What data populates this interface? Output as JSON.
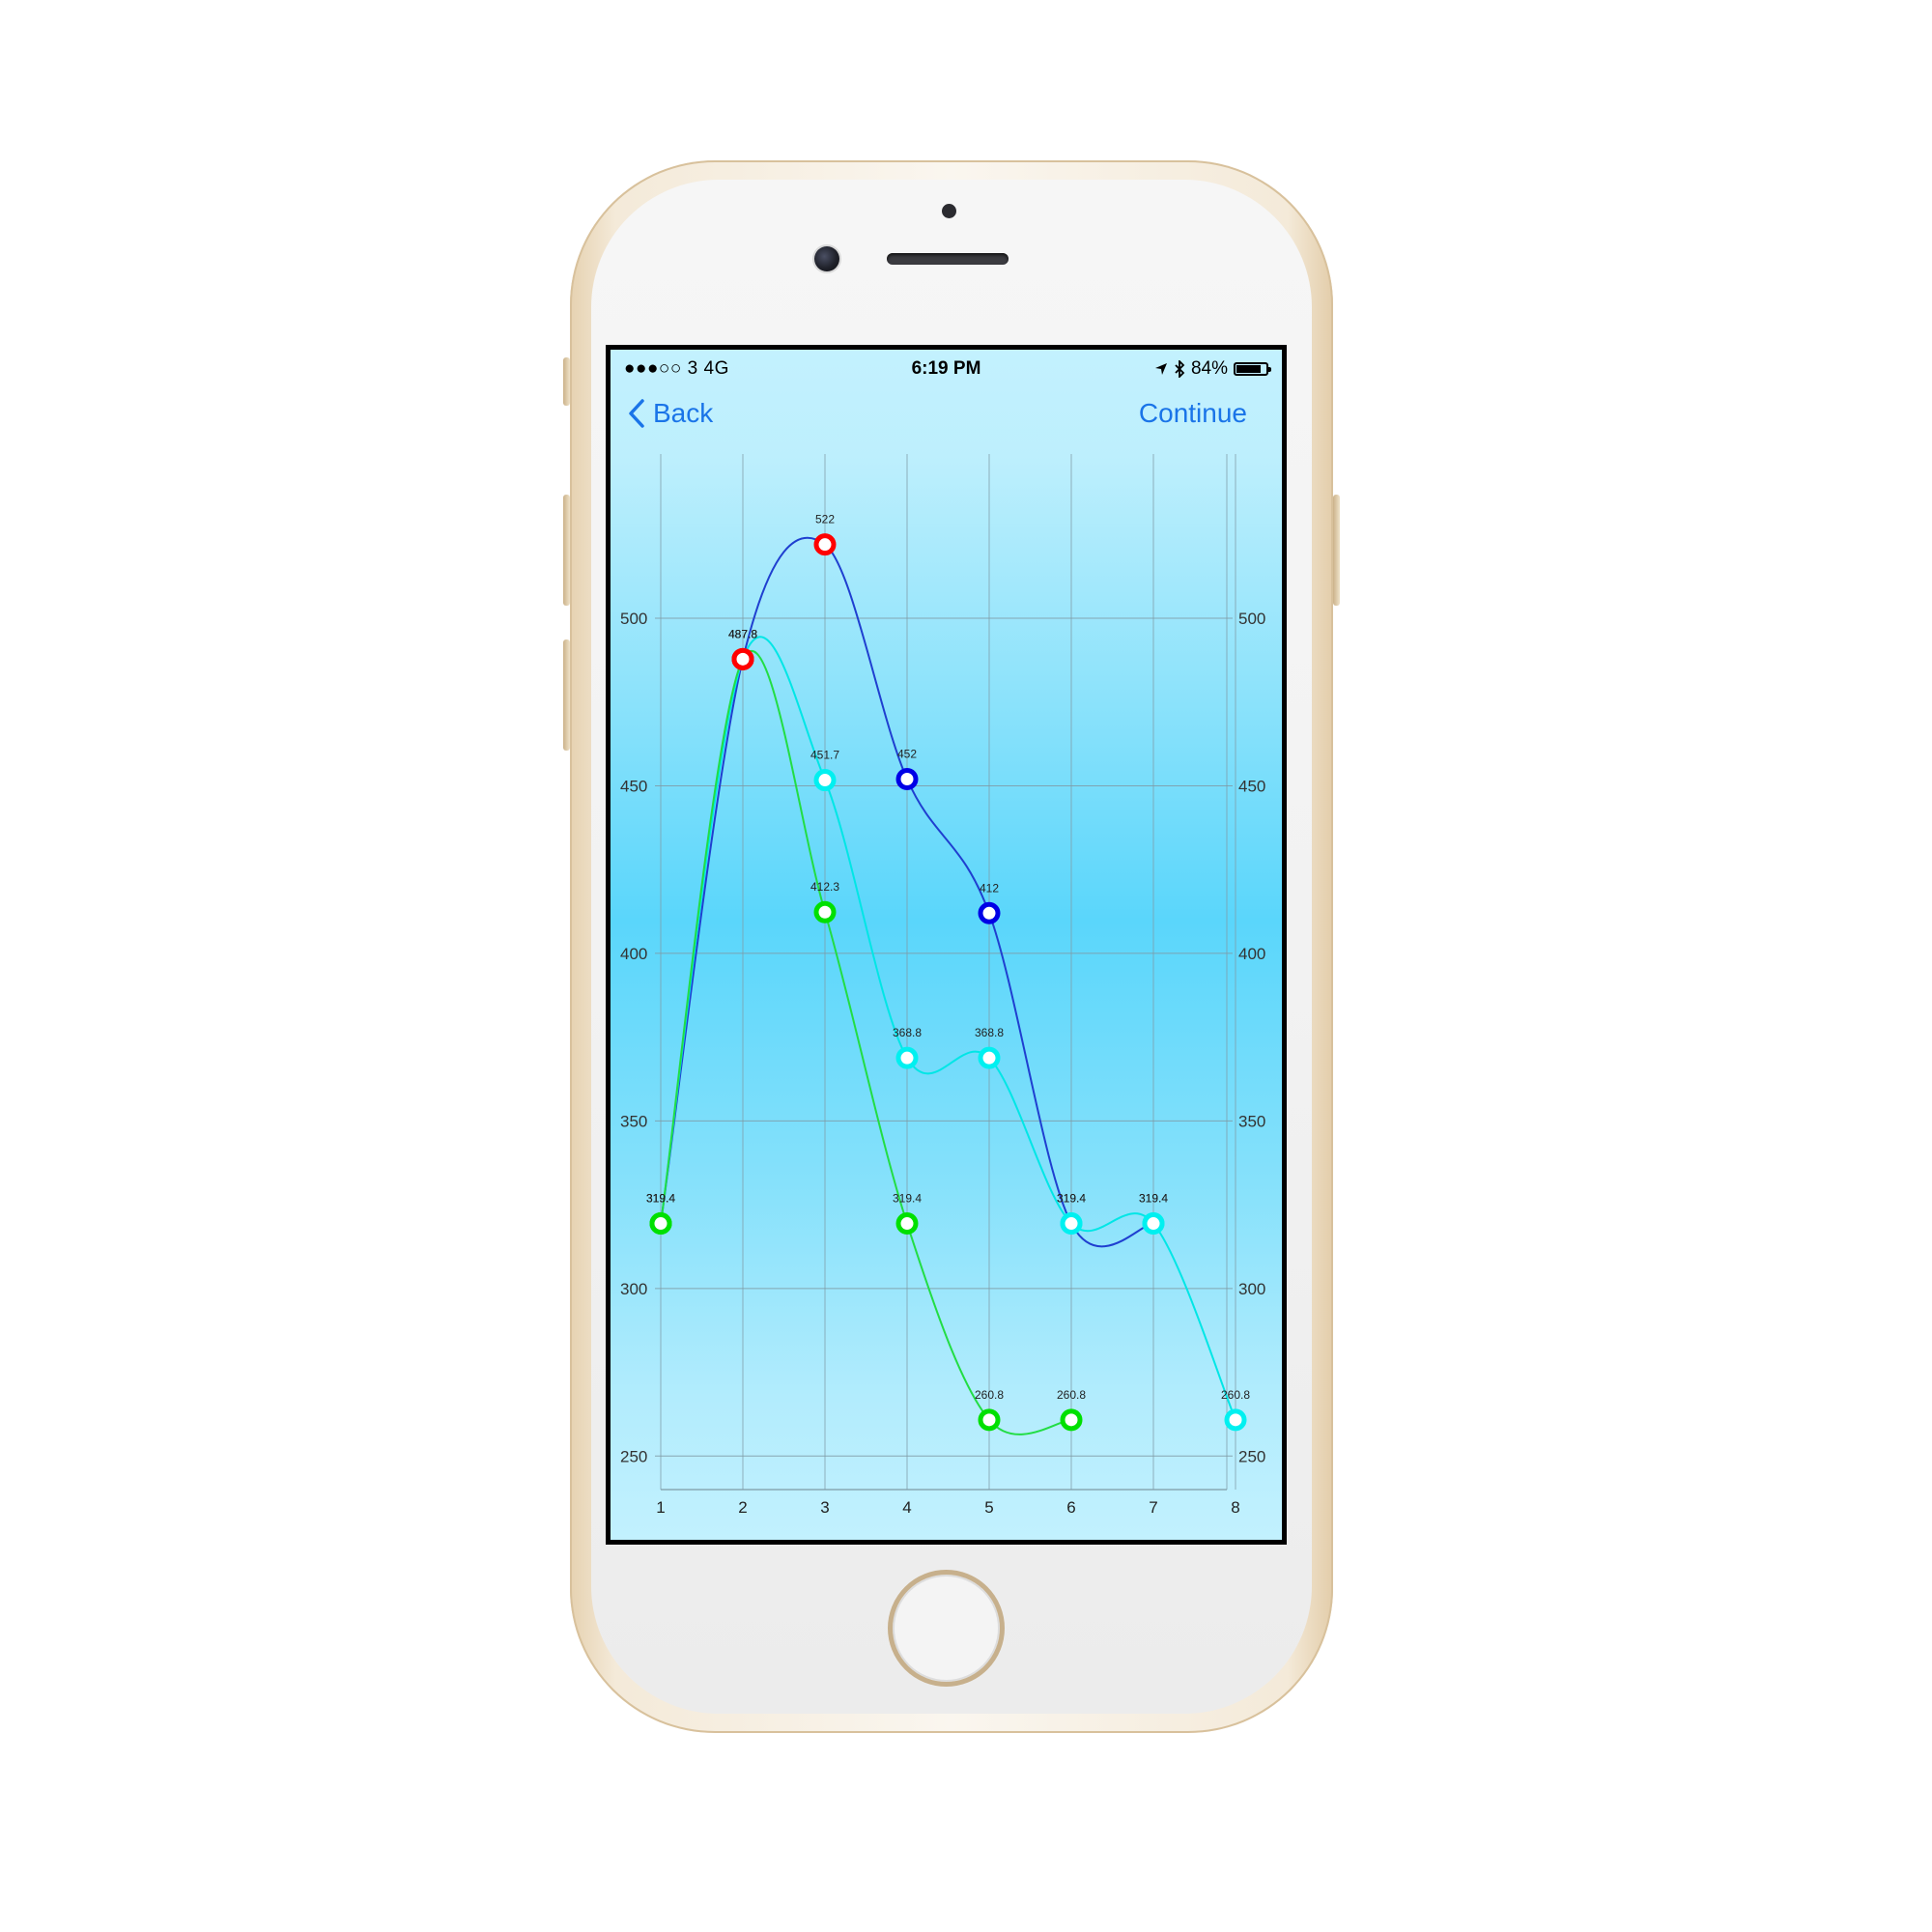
{
  "status_bar": {
    "carrier": "●●●○○ 3  4G",
    "time": "6:19 PM",
    "battery_percent": "84%",
    "battery_level": 0.84
  },
  "nav": {
    "back_label": "Back",
    "continue_label": "Continue"
  },
  "colors": {
    "accent": "#1a74e8",
    "grid": "#7f9aa5"
  },
  "chart_data": {
    "type": "line",
    "x": [
      1,
      2,
      3,
      4,
      5,
      6,
      7,
      8
    ],
    "x_tick_labels": [
      "1",
      "2",
      "3",
      "4",
      "5",
      "6",
      "7",
      "8"
    ],
    "y_tick_labels": [
      "250",
      "300",
      "350",
      "400",
      "450",
      "500"
    ],
    "ylim": [
      240,
      549
    ],
    "grid": true,
    "dual_y_axis": true,
    "series": [
      {
        "color": "#1f3fd0",
        "points": [
          [
            1,
            319.4
          ],
          [
            2,
            487.8
          ],
          [
            3,
            522
          ],
          [
            4,
            452
          ],
          [
            5,
            412
          ],
          [
            6,
            319.4
          ],
          [
            7,
            319.4
          ]
        ],
        "labels": [
          "319.4",
          "487.8",
          "522",
          "452",
          "412",
          "319.4",
          "319.4"
        ],
        "marker_colors": [
          "#00e000",
          "#ff0000",
          "#ff0000",
          "#0000e6",
          "#0000e6",
          "#00f0f0",
          "#00f0f0"
        ]
      },
      {
        "color": "#00e6e6",
        "points": [
          [
            1,
            319.4
          ],
          [
            2,
            487.8
          ],
          [
            3,
            451.7
          ],
          [
            4,
            368.8
          ],
          [
            5,
            368.8
          ],
          [
            6,
            319.4
          ],
          [
            7,
            319.4
          ],
          [
            8,
            260.8
          ]
        ],
        "labels": [
          "319.4",
          "487.8",
          "451.7",
          "368.8",
          "368.8",
          "319.4",
          "319.4",
          "260.8"
        ],
        "marker_colors": [
          "#00e000",
          "#ff0000",
          "#00f0f0",
          "#00f0f0",
          "#00f0f0",
          "#00f0f0",
          "#00f0f0",
          "#00f0f0"
        ]
      },
      {
        "color": "#22dd44",
        "points": [
          [
            1,
            319.4
          ],
          [
            2,
            487.8
          ],
          [
            3,
            412.3
          ],
          [
            4,
            319.4
          ],
          [
            5,
            260.8
          ],
          [
            6,
            260.8
          ]
        ],
        "labels": [
          "319.4",
          "487.8",
          "412.3",
          "319.4",
          "260.8",
          "260.8"
        ],
        "marker_colors": [
          "#00e000",
          "#ff0000",
          "#00e000",
          "#00e000",
          "#00e000",
          "#00e000"
        ]
      }
    ]
  }
}
